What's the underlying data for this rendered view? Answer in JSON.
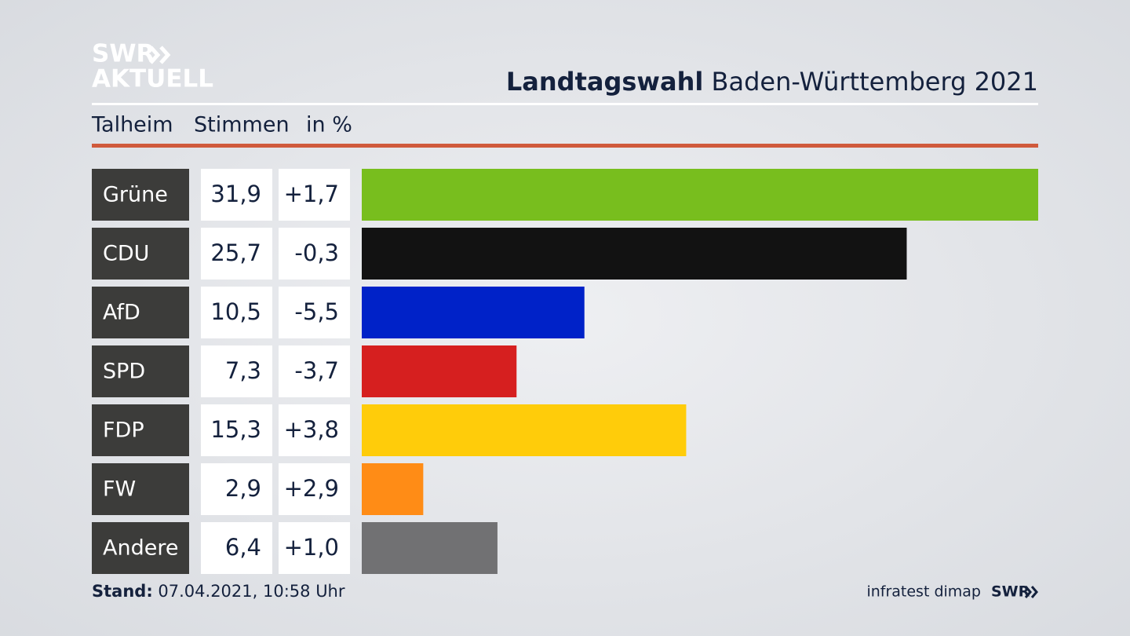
{
  "logo": {
    "line1": "SWR",
    "line2": "AKTUELL"
  },
  "chart_data": {
    "type": "bar",
    "title_bold": "Landtagswahl",
    "title": "Baden-Württemberg 2021",
    "place": "Talheim",
    "column_votes": "Stimmen",
    "column_unit": "in %",
    "categories": [
      "Grüne",
      "CDU",
      "AfD",
      "SPD",
      "FDP",
      "FW",
      "Andere"
    ],
    "values": [
      31.9,
      25.7,
      10.5,
      7.3,
      15.3,
      2.9,
      6.4
    ],
    "value_labels": [
      "31,9",
      "25,7",
      "10,5",
      "7,3",
      "15,3",
      "2,9",
      "6,4"
    ],
    "changes": [
      1.7,
      -0.3,
      -5.5,
      -3.7,
      3.8,
      2.9,
      1.0
    ],
    "change_labels": [
      "+1,7",
      "-0,3",
      "-5,5",
      "-3,7",
      "+3,8",
      "+2,9",
      "+1,0"
    ],
    "colors": [
      "#78be1e",
      "#121212",
      "#0022c8",
      "#d61f1f",
      "#ffcc0a",
      "#ff8c16",
      "#717173"
    ]
  },
  "footer": {
    "stand_label": "Stand:",
    "stand": "07.04.2021, 10:58 Uhr",
    "source": "infratest dimap",
    "brand": "SWR"
  }
}
